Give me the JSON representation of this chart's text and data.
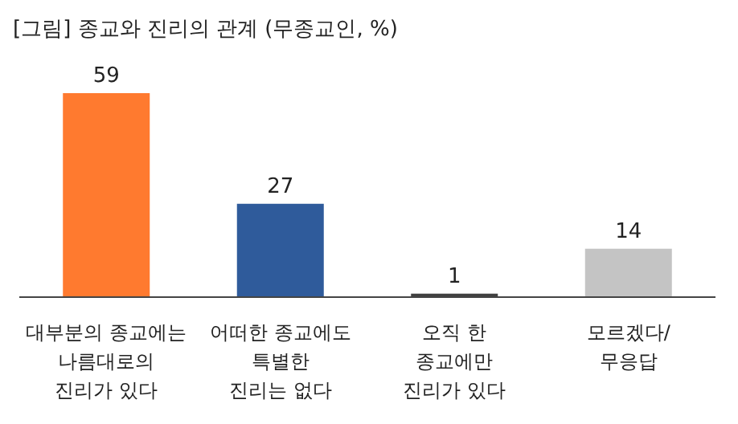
{
  "chart_data": {
    "type": "bar",
    "title": "[그림] 종교와 진리의 관계 (무종교인, %)",
    "categories": [
      "대부분의 종교에는\n나름대로의\n진리가 있다",
      "어떠한 종교에도\n특별한\n진리는 없다",
      "오직 한\n종교에만\n진리가 있다",
      "모르겠다/\n무응답"
    ],
    "values": [
      59,
      27,
      1,
      14
    ],
    "colors": [
      "#ff7a2f",
      "#2f5b9b",
      "#404040",
      "#c4c4c4"
    ],
    "data_labels": true
  }
}
